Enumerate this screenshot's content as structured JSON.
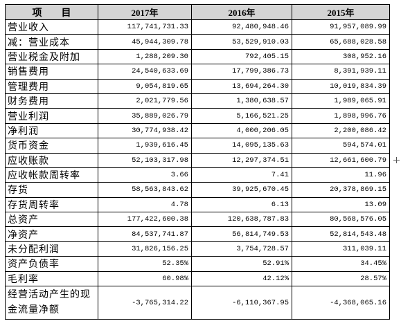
{
  "table": {
    "headers": [
      "项　　目",
      "2017年",
      "2016年",
      "2015年"
    ],
    "rows": [
      {
        "label": "营业收入",
        "values": [
          "117,741,731.33",
          "92,480,948.46",
          "91,957,089.99"
        ]
      },
      {
        "label": "减：营业成本",
        "values": [
          "45,944,309.78",
          "53,529,910.03",
          "65,688,028.58"
        ]
      },
      {
        "label": "营业税金及附加",
        "values": [
          "1,288,209.30",
          "792,405.15",
          "308,952.16"
        ]
      },
      {
        "label": "销售费用",
        "values": [
          "24,540,633.69",
          "17,799,386.73",
          "8,391,939.11"
        ]
      },
      {
        "label": "管理费用",
        "values": [
          "9,054,819.65",
          "13,694,264.30",
          "10,019,834.39"
        ]
      },
      {
        "label": "财务费用",
        "values": [
          "2,021,779.56",
          "1,380,638.57",
          "1,989,065.91"
        ]
      },
      {
        "label": "营业利润",
        "values": [
          "35,889,026.79",
          "5,166,521.25",
          "1,898,996.76"
        ]
      },
      {
        "label": "净利润",
        "values": [
          "30,774,938.42",
          "4,000,206.05",
          "2,200,086.42"
        ]
      },
      {
        "label": "货币资金",
        "values": [
          "1,939,616.45",
          "14,095,135.63",
          "594,574.01"
        ]
      },
      {
        "label": "应收账款",
        "values": [
          "52,103,317.98",
          "12,297,374.51",
          "12,661,600.79"
        ]
      },
      {
        "label": "应收帐款周转率",
        "values": [
          "3.66",
          "7.41",
          "11.96"
        ]
      },
      {
        "label": "存货",
        "values": [
          "58,563,843.62",
          "39,925,670.45",
          "20,378,869.15"
        ]
      },
      {
        "label": "存货周转率",
        "values": [
          "4.78",
          "6.13",
          "13.09"
        ]
      },
      {
        "label": "总资产",
        "values": [
          "177,422,600.38",
          "120,638,787.83",
          "80,568,576.05"
        ]
      },
      {
        "label": "净资产",
        "values": [
          "84,537,741.87",
          "56,814,749.53",
          "52,814,543.48"
        ]
      },
      {
        "label": "未分配利润",
        "values": [
          "31,826,156.25",
          "3,754,728.57",
          "311,039.11"
        ]
      },
      {
        "label": "资产负债率",
        "values": [
          "52.35%",
          "52.91%",
          "34.45%"
        ]
      },
      {
        "label": "毛利率",
        "values": [
          "60.98%",
          "42.12%",
          "28.57%"
        ]
      },
      {
        "label": "经营活动产生的现金流量净额",
        "values": [
          "-3,765,314.22",
          "-6,110,367.95",
          "-4,368,065.16"
        ]
      }
    ]
  },
  "colors": {
    "header_background": "#d4d4d4",
    "grid_lines": "#000000"
  },
  "icons": {
    "table_handle": "plus-icon"
  }
}
